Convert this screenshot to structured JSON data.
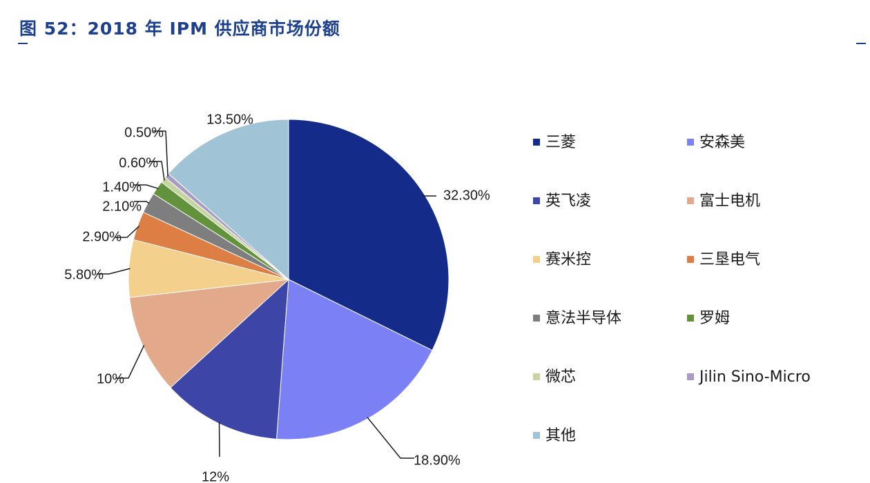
{
  "figure": {
    "title": "图 52：2018 年 IPM 供应商市场份额"
  },
  "chart_data": {
    "type": "pie",
    "title": "图 52：2018 年 IPM 供应商市场份额",
    "legend_position": "right",
    "slices": [
      {
        "name": "三菱",
        "value": 32.3,
        "label": "32.30%",
        "color": "#142b8a"
      },
      {
        "name": "安森美",
        "value": 18.9,
        "label": "18.90%",
        "color": "#7b80f5"
      },
      {
        "name": "英飞凌",
        "value": 12,
        "label": "12%",
        "color": "#3d45a7"
      },
      {
        "name": "富士电机",
        "value": 10,
        "label": "10%",
        "color": "#e2a98b"
      },
      {
        "name": "赛米控",
        "value": 5.8,
        "label": "5.80%",
        "color": "#f3d18c"
      },
      {
        "name": "三垦电气",
        "value": 2.9,
        "label": "2.90%",
        "color": "#dd7e45"
      },
      {
        "name": "意法半导体",
        "value": 2.1,
        "label": "2.10%",
        "color": "#7e7e7e"
      },
      {
        "name": "罗姆",
        "value": 1.4,
        "label": "1.40%",
        "color": "#62933c"
      },
      {
        "name": "微芯",
        "value": 0.6,
        "label": "0.60%",
        "color": "#c5d4a0"
      },
      {
        "name": "Jilin Sino-Micro",
        "value": 0.5,
        "label": "0.50%",
        "color": "#a89cc6"
      },
      {
        "name": "其他",
        "value": 13.5,
        "label": "13.50%",
        "color": "#a0c3d5"
      }
    ]
  }
}
